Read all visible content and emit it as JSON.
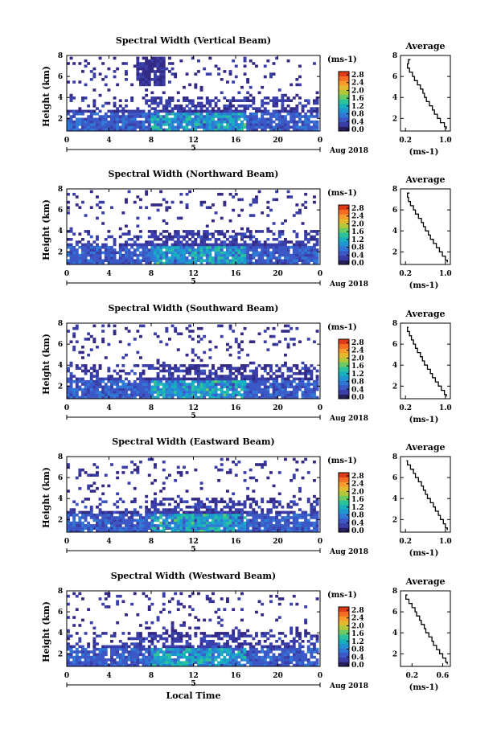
{
  "chart_data": [
    {
      "type": "heatmap",
      "title": "Spectral Width (Vertical Beam)",
      "ylabel": "Height (km)",
      "x_ticks": [
        "0",
        "4",
        "8",
        "12",
        "16",
        "20",
        "0"
      ],
      "y_ticks": [
        "2",
        "4",
        "6",
        "8"
      ],
      "day_label": "5",
      "date_label": "Aug 2018",
      "xlim": [
        0,
        24
      ],
      "ylim": [
        0.8,
        8.0
      ],
      "colorbar": {
        "unit": "(ms-1)",
        "ticks": [
          "0.0",
          "0.4",
          "0.8",
          "1.2",
          "1.6",
          "2.0",
          "2.4",
          "2.8"
        ],
        "range": [
          0,
          3.0
        ]
      },
      "profile": {
        "title": "Average",
        "xlabel": "(ms-1)",
        "x_ticks": [
          "0.2",
          "1.0"
        ],
        "xlim": [
          0.1,
          1.1
        ],
        "y_ticks": [
          "2",
          "4",
          "6",
          "8"
        ],
        "ylim": [
          0.8,
          8.0
        ],
        "x": [
          0.3,
          0.26,
          0.24,
          0.28,
          0.34,
          0.38,
          0.44,
          0.5,
          0.55,
          0.58,
          0.62,
          0.68,
          0.74,
          0.78,
          0.84,
          0.9,
          0.98,
          1.02
        ],
        "y": [
          7.6,
          7.2,
          6.8,
          6.4,
          6.0,
          5.6,
          5.2,
          4.8,
          4.4,
          4.0,
          3.6,
          3.2,
          2.8,
          2.4,
          2.0,
          1.6,
          1.2,
          1.0
        ]
      }
    },
    {
      "type": "heatmap",
      "title": "Spectral Width (Northward Beam)",
      "ylabel": "Height (km)",
      "x_ticks": [
        "0",
        "4",
        "8",
        "12",
        "16",
        "20",
        "0"
      ],
      "y_ticks": [
        "2",
        "4",
        "6",
        "8"
      ],
      "day_label": "5",
      "date_label": "Aug 2018",
      "xlim": [
        0,
        24
      ],
      "ylim": [
        0.8,
        8.0
      ],
      "colorbar": {
        "unit": "(ms-1)",
        "ticks": [
          "0.0",
          "0.4",
          "0.8",
          "1.2",
          "1.6",
          "2.0",
          "2.4",
          "2.8"
        ],
        "range": [
          0,
          3.0
        ]
      },
      "profile": {
        "title": "Average",
        "xlabel": "(ms-1)",
        "x_ticks": [
          "0.2",
          "1.0"
        ],
        "xlim": [
          0.1,
          1.1
        ],
        "y_ticks": [
          "2",
          "4",
          "6",
          "8"
        ],
        "ylim": [
          0.8,
          8.0
        ],
        "x": [
          0.28,
          0.24,
          0.26,
          0.3,
          0.36,
          0.4,
          0.46,
          0.52,
          0.56,
          0.6,
          0.66,
          0.7,
          0.76,
          0.82,
          0.88,
          0.94,
          1.0,
          1.04
        ],
        "y": [
          7.6,
          7.2,
          6.8,
          6.4,
          6.0,
          5.6,
          5.2,
          4.8,
          4.4,
          4.0,
          3.6,
          3.2,
          2.8,
          2.4,
          2.0,
          1.6,
          1.2,
          1.0
        ]
      }
    },
    {
      "type": "heatmap",
      "title": "Spectral Width (Southward Beam)",
      "ylabel": "Height (km)",
      "x_ticks": [
        "0",
        "4",
        "8",
        "12",
        "16",
        "20",
        "0"
      ],
      "y_ticks": [
        "2",
        "4",
        "6",
        "8"
      ],
      "day_label": "5",
      "date_label": "Aug 2018",
      "xlim": [
        0,
        24
      ],
      "ylim": [
        0.8,
        8.0
      ],
      "colorbar": {
        "unit": "(ms-1)",
        "ticks": [
          "0.0",
          "0.4",
          "0.8",
          "1.2",
          "1.6",
          "2.0",
          "2.4",
          "2.8"
        ],
        "range": [
          0,
          3.0
        ]
      },
      "profile": {
        "title": "Average",
        "xlabel": "(ms-1)",
        "x_ticks": [
          "0.2",
          "1.0"
        ],
        "xlim": [
          0.1,
          1.1
        ],
        "y_ticks": [
          "2",
          "4",
          "6",
          "8"
        ],
        "ylim": [
          0.8,
          8.0
        ],
        "x": [
          0.26,
          0.24,
          0.28,
          0.32,
          0.36,
          0.4,
          0.44,
          0.5,
          0.54,
          0.58,
          0.64,
          0.7,
          0.74,
          0.8,
          0.86,
          0.92,
          0.98,
          1.02
        ],
        "y": [
          7.6,
          7.2,
          6.8,
          6.4,
          6.0,
          5.6,
          5.2,
          4.8,
          4.4,
          4.0,
          3.6,
          3.2,
          2.8,
          2.4,
          2.0,
          1.6,
          1.2,
          1.0
        ]
      }
    },
    {
      "type": "heatmap",
      "title": "Spectral Width (Eastward Beam)",
      "ylabel": "Height (km)",
      "x_ticks": [
        "0",
        "4",
        "8",
        "12",
        "16",
        "20",
        "0"
      ],
      "y_ticks": [
        "2",
        "4",
        "6",
        "8"
      ],
      "day_label": "5",
      "date_label": "Aug 2018",
      "xlim": [
        0,
        24
      ],
      "ylim": [
        0.8,
        8.0
      ],
      "colorbar": {
        "unit": "(ms-1)",
        "ticks": [
          "0.0",
          "0.4",
          "0.8",
          "1.2",
          "1.6",
          "2.0",
          "2.4",
          "2.8"
        ],
        "range": [
          0,
          3.0
        ]
      },
      "profile": {
        "title": "Average",
        "xlabel": "(ms-1)",
        "x_ticks": [
          "0.2",
          "1.0"
        ],
        "xlim": [
          0.1,
          1.1
        ],
        "y_ticks": [
          "2",
          "4",
          "6",
          "8"
        ],
        "ylim": [
          0.8,
          8.0
        ],
        "x": [
          0.22,
          0.24,
          0.3,
          0.36,
          0.4,
          0.46,
          0.52,
          0.56,
          0.6,
          0.64,
          0.7,
          0.76,
          0.8,
          0.86,
          0.9,
          0.96,
          1.0,
          1.04
        ],
        "y": [
          7.6,
          7.2,
          6.8,
          6.4,
          6.0,
          5.6,
          5.2,
          4.8,
          4.4,
          4.0,
          3.6,
          3.2,
          2.8,
          2.4,
          2.0,
          1.6,
          1.2,
          1.0
        ]
      }
    },
    {
      "type": "heatmap",
      "title": "Spectral Width (Westward Beam)",
      "ylabel": "Height (km)",
      "x_ticks": [
        "0",
        "4",
        "8",
        "12",
        "16",
        "20",
        "0"
      ],
      "y_ticks": [
        "2",
        "4",
        "6",
        "8"
      ],
      "day_label": "5",
      "date_label": "Aug 2018",
      "xlim": [
        0,
        24
      ],
      "ylim": [
        0.8,
        8.0
      ],
      "xlabel": "Local Time",
      "colorbar": {
        "unit": "(ms-1)",
        "ticks": [
          "0.0",
          "0.4",
          "0.8",
          "1.2",
          "1.6",
          "2.0",
          "2.4",
          "2.8"
        ],
        "range": [
          0,
          3.0
        ]
      },
      "profile": {
        "title": "Average",
        "xlabel": "(ms-1)",
        "x_ticks": [
          "0.2",
          "0.6"
        ],
        "xlim": [
          0.05,
          0.7
        ],
        "y_ticks": [
          "2",
          "4",
          "6",
          "8"
        ],
        "ylim": [
          0.8,
          8.0
        ],
        "x": [
          0.14,
          0.12,
          0.16,
          0.2,
          0.24,
          0.26,
          0.3,
          0.32,
          0.36,
          0.38,
          0.42,
          0.46,
          0.48,
          0.52,
          0.56,
          0.6,
          0.64,
          0.66
        ],
        "y": [
          7.6,
          7.2,
          6.8,
          6.4,
          6.0,
          5.6,
          5.2,
          4.8,
          4.4,
          4.0,
          3.6,
          3.2,
          2.8,
          2.4,
          2.0,
          1.6,
          1.2,
          1.0
        ]
      }
    }
  ]
}
